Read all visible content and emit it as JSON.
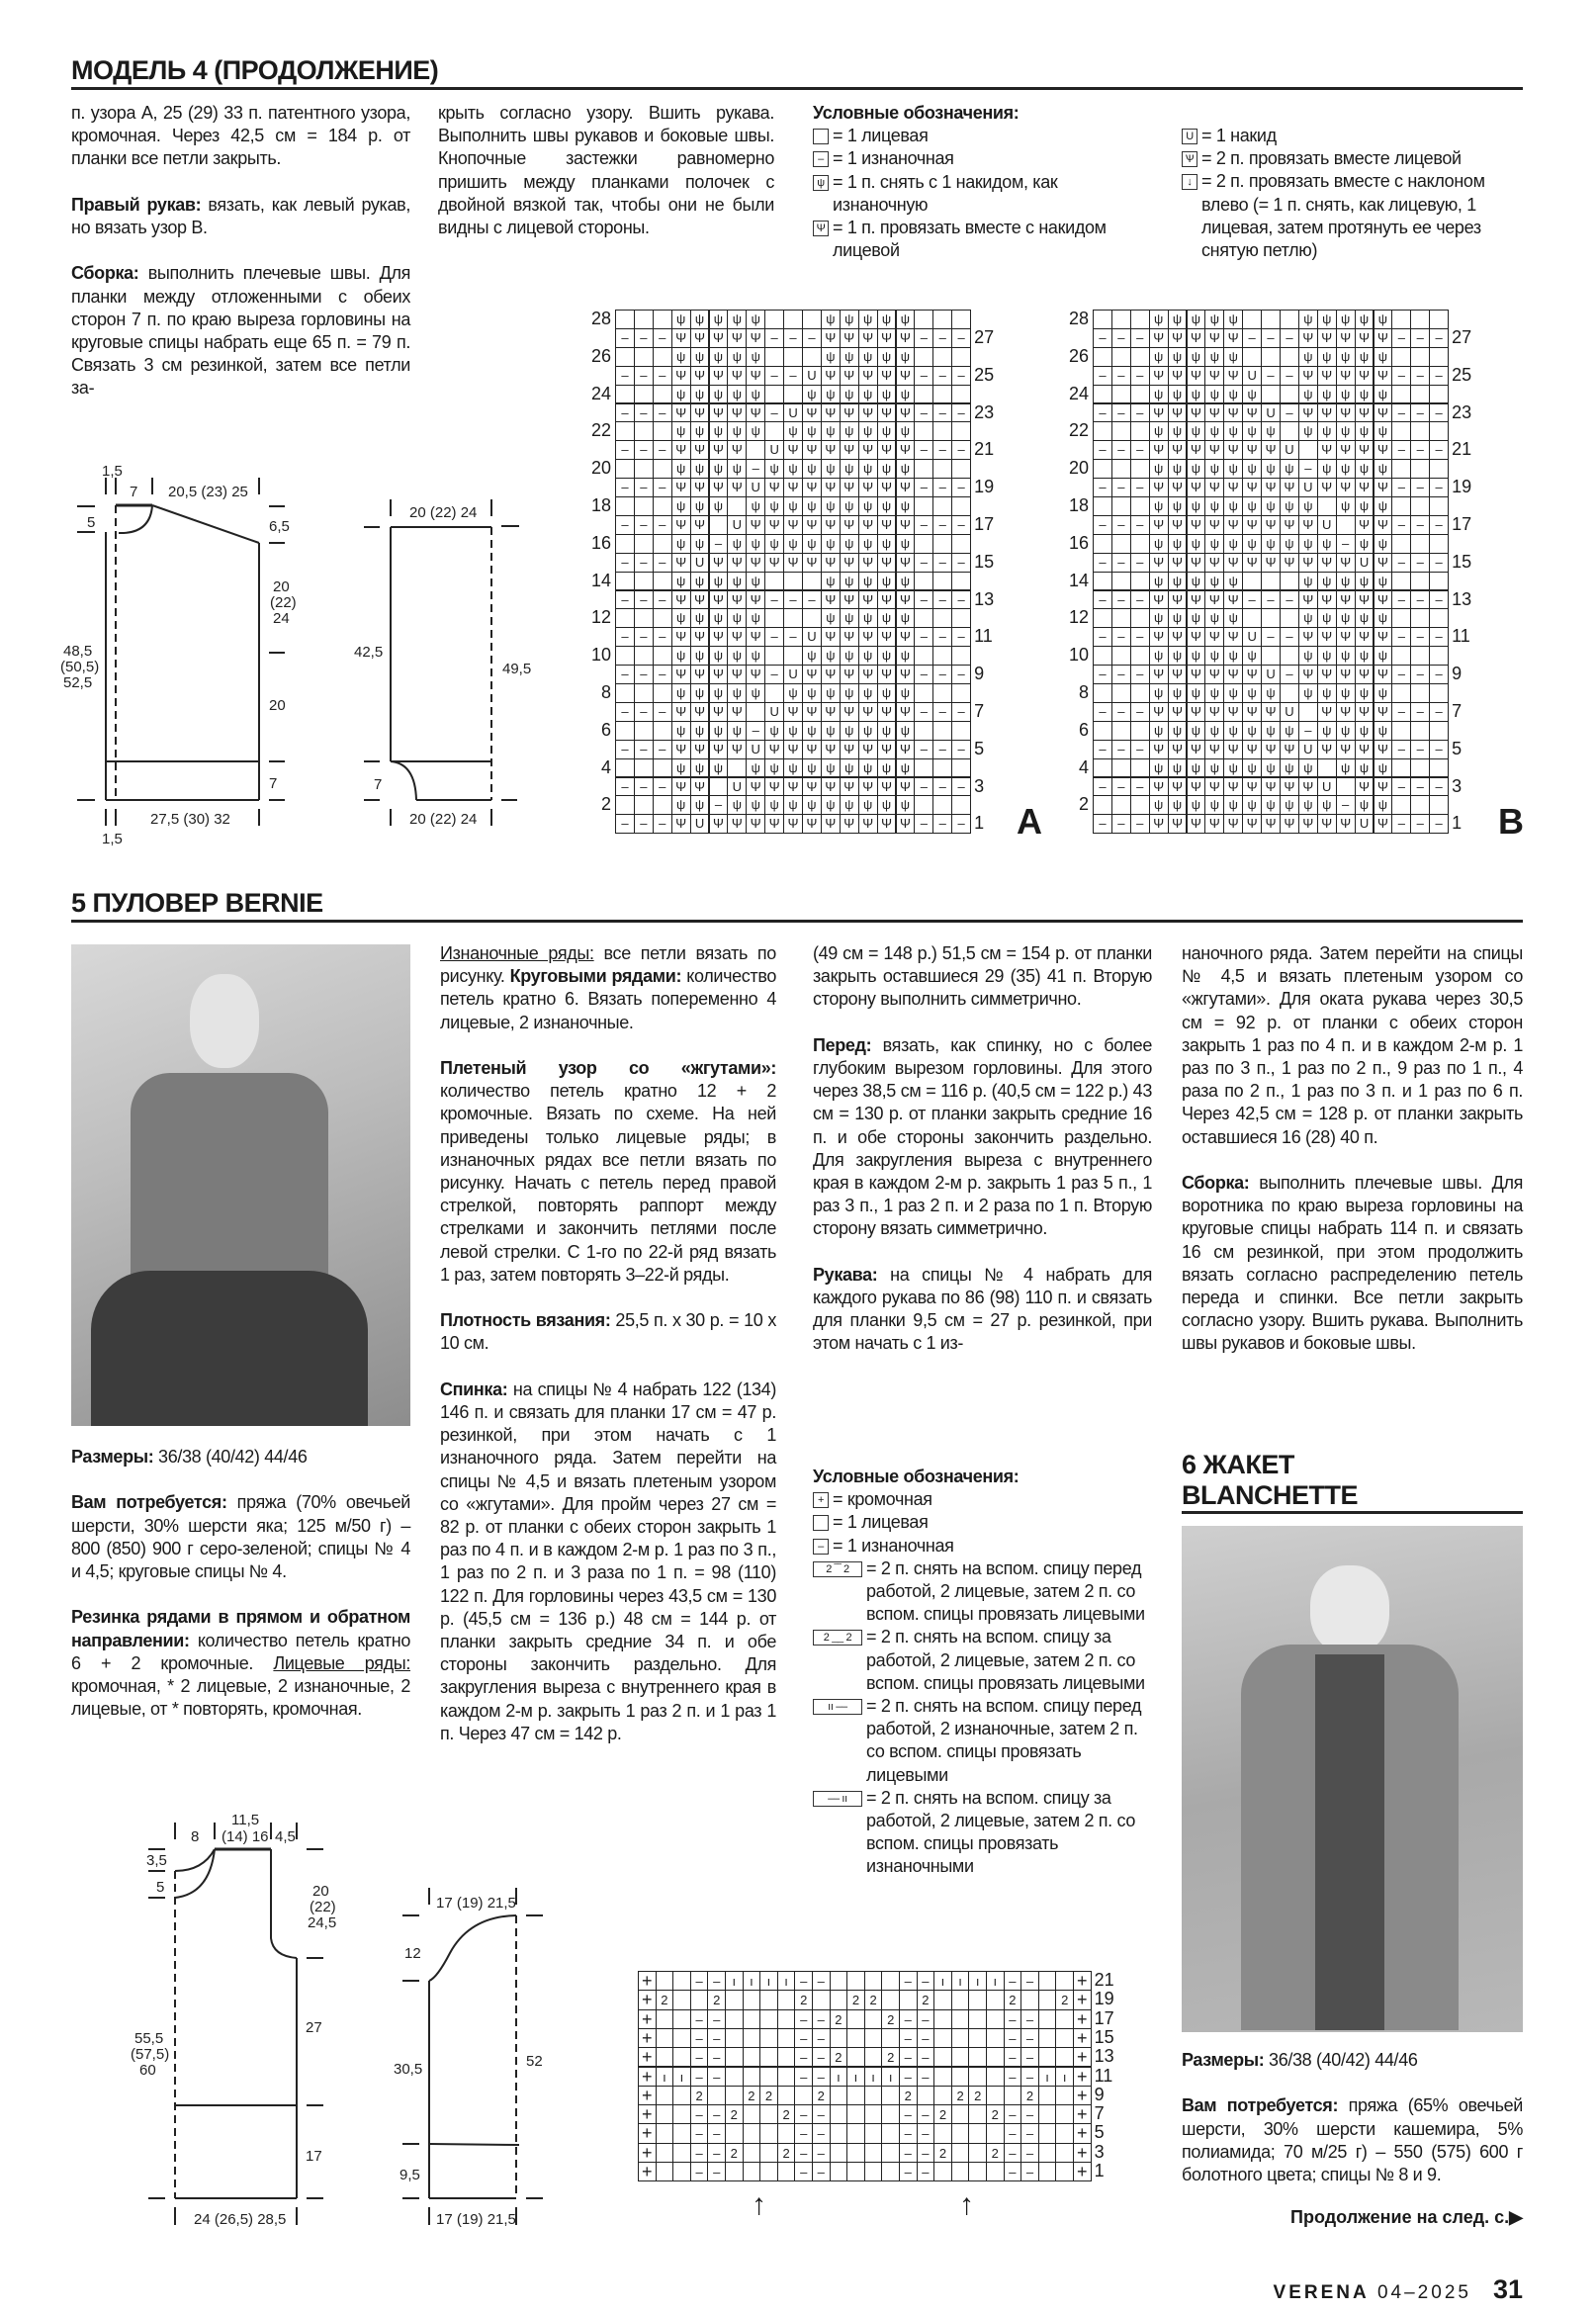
{
  "model4": {
    "title": "МОДЕЛЬ 4 (ПРОДОЛЖЕНИЕ)",
    "col1": [
      [
        {
          "t": "п. узора А, 25 (29) 33 п. патентного узора, кромочная. Через 42,5 см = 184 р. от планки все петли закрыть."
        }
      ],
      [
        {
          "t": "Правый рукав:",
          "s": "b"
        },
        {
          "t": " вязать, как левый рукав, но вязать узор В."
        }
      ],
      [
        {
          "t": "Сборка:",
          "s": "b"
        },
        {
          "t": " выполнить плечевые швы. Для планки между отложенными с обеих сторон 7 п. по краю выреза горловины на круговые спицы набрать еще 65 п. = 79 п. Связать 3 см резинкой, затем все петли за-"
        }
      ]
    ],
    "col2": [
      [
        {
          "t": "крыть согласно узору. Вшить рукава. Выполнить швы рукавов и боковые швы. Кнопочные застежки равномерно пришить между планками полочек с двойной вязкой так, чтобы они не были видны с лицевой стороны."
        }
      ]
    ],
    "legend": {
      "title": "Условные обозначения:",
      "left": [
        {
          "sym": "",
          "text": "= 1 лицевая"
        },
        {
          "sym": "–",
          "text": "= 1 изнаночная"
        },
        {
          "sym": "ψ",
          "text": "= 1 п. снять с 1 накидом, как изнаночную"
        },
        {
          "sym": "Ψ",
          "text": "= 1 п. провязать вместе с накидом лицевой"
        }
      ],
      "right": [
        {
          "sym": "U",
          "text": "= 1 накид"
        },
        {
          "sym": "Ѱ",
          "text": "= 2 п. провязать вместе лицевой"
        },
        {
          "sym": "↓",
          "text": "= 2 п. провязать вместе с наклоном влево (= 1 п. снять, как лицевую, 1 лицевая, затем протянуть ее через снятую петлю)"
        }
      ]
    },
    "schematic_front": {
      "l1": "1,5",
      "l2": "7",
      "l3": "20,5 (23) 25",
      "l4": "5",
      "l5": "6,5",
      "l6a": "20",
      "l6b": "(22)",
      "l6c": "24",
      "l7a": "48,5",
      "l7b": "(50,5)",
      "l7c": "52,5",
      "l8": "20",
      "l9": "7",
      "l10": "27,5 (30) 32",
      "l11": "1,5"
    },
    "schematic_sleeve": {
      "top": "20 (22) 24",
      "left": "42,5",
      "right": "49,5",
      "cuff": "7",
      "bottom": "20 (22) 24"
    },
    "chart_a": {
      "label": "A",
      "rows_top_to_bottom": [
        "...yyyyy...yyyyy...",
        "---kkkkk---kkkkk---",
        "...yyyyy...yyyyy...",
        "---kkkkk--ukkkkk---",
        "...yyyyy..yyyyyy...",
        "---kkkkk-ukkkkkk---",
        "...yyyyy.yyyyyyy...",
        "---kkkk.ukkkkkkk---",
        "...yyyy-yyyyyyyy...",
        "---kkkkukkkkkkkk---",
        "...yyy.yyyyyyyyy...",
        "---kk.ukkkkkkkkk---",
        "...yy-yyyyyyyyyy...",
        "---kukkkkkkkkkkk---",
        "...yyyyy...yyyyy...",
        "---kkkkk---kkkkk---",
        "...yyyyy...yyyyy...",
        "---kkkkk--ukkkkk---",
        "...yyyyy..yyyyyy...",
        "---kkkkk-ukkkkkk---",
        "...yyyyy.yyyyyyy...",
        "---kkkk.ukkkkkkk---",
        "...yyyy-yyyyyyyy...",
        "---kkkkukkkkkkkk---",
        "...yyy.yyyyyyyyy...",
        "---kk.ukkkkkkkkk---",
        "...yy-yyyyyyyyyy...",
        "---kukkkkkkkkkkk---"
      ]
    },
    "chart_b": {
      "label": "B"
    },
    "row_numbers_even": [
      "28",
      "26",
      "24",
      "22",
      "20",
      "18",
      "16",
      "14",
      "12",
      "10",
      "8",
      "6",
      "4",
      "2"
    ],
    "row_numbers_odd": [
      "27",
      "25",
      "23",
      "21",
      "19",
      "17",
      "15",
      "13",
      "11",
      "9",
      "7",
      "5",
      "3",
      "1"
    ]
  },
  "model5": {
    "title": "5 ПУЛОВЕР BERNIE",
    "col1": [
      [
        {
          "t": "Размеры:",
          "s": "b"
        },
        {
          "t": " 36/38 (40/42) 44/46"
        }
      ],
      [
        {
          "t": "Вам потребуется:",
          "s": "b"
        },
        {
          "t": " пряжа (70% овечьей шерсти, 30% шерсти яка; 125 м/50 г) – 800 (850) 900 г серо-зеленой; спицы № 4 и 4,5; круговые спицы № 4."
        }
      ],
      [
        {
          "t": "Резинка рядами в прямом и обратном направлении:",
          "s": "b"
        },
        {
          "t": " количество петель кратно 6 + 2 кромочные. "
        },
        {
          "t": "Лицевые ряды:",
          "s": "u"
        },
        {
          "t": " кромочная, * 2 лицевые, 2 изнаночные, 2 лицевые, от * повторять, кромочная."
        }
      ]
    ],
    "col2": [
      [
        {
          "t": "Изнаночные ряды:",
          "s": "u"
        },
        {
          "t": " все петли вязать по рисунку. "
        },
        {
          "t": "Круговыми рядами:",
          "s": "b"
        },
        {
          "t": " количество петель кратно 6. Вязать попеременно 4 лицевые, 2 изнаночные."
        }
      ],
      [
        {
          "t": "Плетеный узор со «жгутами»:",
          "s": "b"
        },
        {
          "t": " количество петель кратно 12 + 2 кромочные. Вязать по схеме. На ней приведены только лицевые ряды; в изнаночных рядах все петли вязать по рисунку. Начать с петель перед правой стрелкой, повторять раппорт между стрелками и закончить петлями после левой стрелки. С 1-го по 22-й ряд вязать 1 раз, затем повторять 3–22-й ряды."
        }
      ],
      [
        {
          "t": "Плотность вязания:",
          "s": "b"
        },
        {
          "t": " 25,5 п. х 30 р. = 10 х 10 см."
        }
      ],
      [
        {
          "t": "Спинка:",
          "s": "b"
        },
        {
          "t": " на спицы № 4 набрать 122 (134) 146 п. и связать для планки 17 см = 47 р. резинкой, при этом начать с 1 изнаночного ряда. Затем перейти на спицы № 4,5 и вязать плетеным узором со «жгутами». Для пройм через 27 см = 82 р. от планки с обеих сторон закрыть 1 раз по 4 п. и в каждом 2-м р. 1 раз по 3 п., 1 раз по 2 п. и 3 раза по 1 п. = 98 (110) 122 п. Для горловины через 43,5 см = 130 р. (45,5 см = 136 р.) 48 см = 144 р. от планки закрыть средние 34 п. и обе стороны закончить раздельно. Для закругления выреза с внутреннего края в каждом 2-м р. закрыть 1 раз 2 п. и 1 раз 1 п. Через 47 см = 142 р."
        }
      ]
    ],
    "col3": [
      [
        {
          "t": "(49 см = 148 р.) 51,5 см = 154 р. от планки закрыть оставшиеся 29 (35) 41 п. Вторую сторону выполнить симметрично."
        }
      ],
      [
        {
          "t": "Перед:",
          "s": "b"
        },
        {
          "t": " вязать, как спинку, но с более глубоким вырезом горловины. Для этого через 38,5 см = 116 р. (40,5 см = 122 р.) 43 см = 130 р. от планки закрыть средние 16 п. и обе стороны закончить раздельно. Для закругления выреза с внутреннего края в каждом 2-м р. закрыть 1 раз 5 п., 1 раз 3 п., 1 раз 2 п. и 2 раза по 1 п. Вторую сторону вязать симметрично."
        }
      ],
      [
        {
          "t": "Рукава:",
          "s": "b"
        },
        {
          "t": " на спицы № 4 набрать для каждого рукава по 86 (98) 110 п. и связать для планки 9,5 см = 27 р. резинкой, при этом начать с 1 из-"
        }
      ]
    ],
    "col4": [
      [
        {
          "t": "наночного ряда. Затем перейти на спицы № 4,5 и вязать плетеным узором со «жгутами». Для оката рукава через 30,5 см = 92 р. от планки с обеих сторон закрыть 1 раз по 4 п. и в каждом 2-м р. 1 раз по 3 п., 1 раз по 2 п., 9 раз по 1 п., 4 раза по 2 п., 1 раз по 3 п. и 1 раз по 6 п. Через 42,5 см = 128 р. от планки закрыть оставшиеся 16 (28) 40 п."
        }
      ],
      [
        {
          "t": "Сборка:",
          "s": "b"
        },
        {
          "t": " выполнить плечевые швы. Для воротника по краю выреза горловины на круговые спицы набрать 114 п. и связать 16 см резинкой, при этом продолжить вязать согласно распределению петель переда и спинки. Все петли закрыть согласно узору. Вшить рукава. Выполнить швы рукавов и боковые швы."
        }
      ]
    ],
    "legend": {
      "title": "Условные обозначения:",
      "items": [
        {
          "sym": "+",
          "wide": false,
          "text": "= кромочная"
        },
        {
          "sym": "",
          "wide": false,
          "text": "= 1 лицевая"
        },
        {
          "sym": "–",
          "wide": false,
          "text": "= 1 изнаночная"
        },
        {
          "sym": "2 ‾‾ 2",
          "wide": true,
          "text": "= 2 п. снять на вспом. спицу перед работой, 2 лицевые, затем 2 п. со вспом. спицы провязать лицевыми"
        },
        {
          "sym": "2 __ 2",
          "wide": true,
          "text": "= 2 п. снять на вспом. спицу за работой, 2 лицевые, затем 2 п. со вспом. спицы провязать лицевыми"
        },
        {
          "sym": "ıı ––",
          "wide": true,
          "text": "= 2 п. снять на вспом. спицу перед работой, 2 изнаночные, затем 2 п. со вспом. спицы провязать лицевыми"
        },
        {
          "sym": "–– ıı",
          "wide": true,
          "text": "= 2 п. снять на вспом. спицу за работой, 2 лицевые, затем 2 п. со вспом. спицы провязать изнаночными"
        }
      ]
    },
    "schematic_body": {
      "a": "8",
      "b1": "11,5",
      "b2": "(14) 16",
      "c": "4,5",
      "d": "3,5",
      "e": "5",
      "f1": "20",
      "f2": "(22)",
      "f3": "24,5",
      "g1": "55,5",
      "g2": "(57,5)",
      "g3": "60",
      "h": "27",
      "i": "17",
      "j": "24 (26,5) 28,5"
    },
    "schematic_sleeve": {
      "top": "17 (19) 21,5",
      "cap": "12",
      "left": "30,5",
      "right": "52",
      "cuff": "9,5",
      "bottom": "17 (19) 21,5"
    },
    "cable_chart": {
      "rows_top_to_bottom": [
        "+..--iiii--....--iiii--..+",
        "+2..2....2..22..2....2..2+",
        "+..--....--2..2--....--..+",
        "+..--....--....--....--..+",
        "+..--....--2..2--....--..+",
        "+ii--....--iiii--....--ii+",
        "+..2..22..2....2..22..2..+",
        "+..--2..2--....--2..2--..+",
        "+..--....--....--....--..+",
        "+..--2..2--....--2..2--..+",
        "+..--....--....--....--..+"
      ],
      "row_numbers": [
        "21",
        "19",
        "17",
        "15",
        "13",
        "11",
        "9",
        "7",
        "5",
        "3",
        "1"
      ]
    }
  },
  "model6": {
    "title_line1": "6 ЖАКЕТ",
    "title_line2": "BLANCHETTE",
    "sizes": [
      {
        "t": "Размеры:",
        "s": "b"
      },
      {
        "t": " 36/38 (40/42) 44/46"
      }
    ],
    "materials": [
      {
        "t": "Вам потребуется:",
        "s": "b"
      },
      {
        "t": " пряжа (65% овечьей шерсти, 30% шерсти кашемира, 5% полиамида; 70 м/25 г) – 550 (575) 600 г болотного цвета; спицы № 8 и 9."
      }
    ],
    "continued": "Продолжение на след. с.",
    "continued_icon": "triangle-right-icon"
  },
  "footer": {
    "brand": "VERENA",
    "issue": "04–2025",
    "page": "31"
  }
}
